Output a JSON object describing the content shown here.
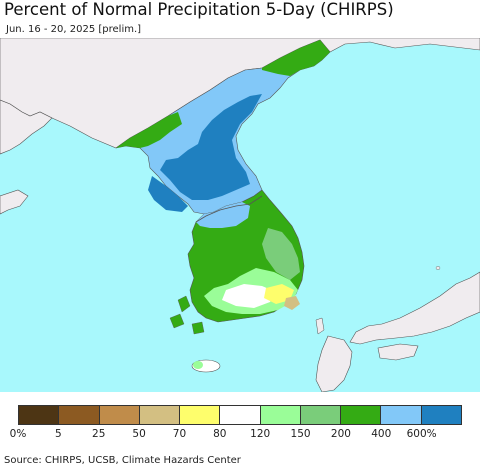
{
  "header": {
    "title": "Percent of Normal Precipitation 5-Day (CHIRPS)",
    "subtitle": "Jun. 16 - 20, 2025 [prelim.]"
  },
  "legend": {
    "colors": [
      "#4d3514",
      "#8c5a22",
      "#c08c4a",
      "#d3bf82",
      "#fefe6c",
      "#ffffff",
      "#9afd98",
      "#7acd7a",
      "#34ab14",
      "#82c8f8",
      "#1f80c0"
    ],
    "ticks": [
      "0%",
      "5",
      "25",
      "50",
      "70",
      "80",
      "120",
      "150",
      "200",
      "400",
      "600%"
    ]
  },
  "map_colors": {
    "ocean": "#a8f8fc",
    "foreign_land": "#f0ecef",
    "border": "#555555",
    "light_blue": "#82c8f8",
    "dark_blue": "#1f80c0",
    "green": "#34ab14",
    "medium_green": "#7acd7a",
    "light_green": "#9afd98",
    "yellow": "#fefe6c",
    "tan": "#d3bf82",
    "white": "#ffffff"
  },
  "footer": {
    "source": "Source: CHIRPS, UCSB, Climate Hazards Center"
  }
}
